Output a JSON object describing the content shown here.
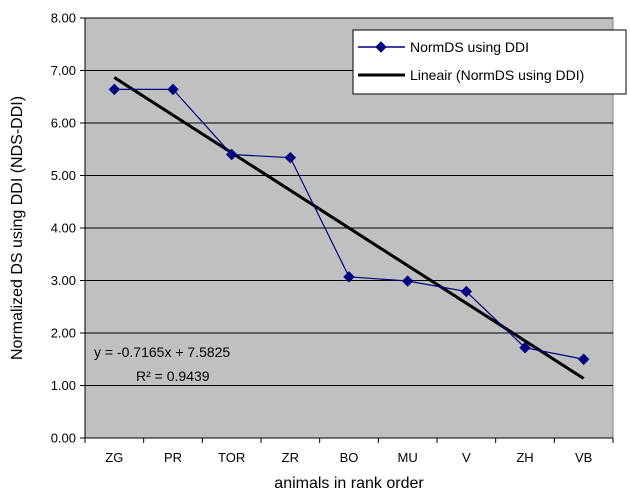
{
  "chart_data": {
    "type": "line",
    "categories": [
      "ZG",
      "PR",
      "TOR",
      "ZR",
      "BO",
      "MU",
      "V",
      "ZH",
      "VB"
    ],
    "series": [
      {
        "name": "NormDS using DDI",
        "values": [
          6.64,
          6.64,
          5.4,
          5.34,
          3.07,
          2.99,
          2.79,
          1.72,
          1.5
        ]
      }
    ],
    "trendline": {
      "name": "Lineair (NormDS using DDI)",
      "slope": -0.7165,
      "intercept": 7.5825
    },
    "xlabel": "animals in rank order",
    "ylabel": "Normalized DS using DDI (NDS-DDI)",
    "ylim": [
      0,
      8
    ],
    "yticks": [
      "0.00",
      "1.00",
      "2.00",
      "3.00",
      "4.00",
      "5.00",
      "6.00",
      "7.00",
      "8.00"
    ],
    "equation_text": "y = -0.7165x + 7.5825",
    "r2_text": "R² = 0.9439",
    "legend_position": "top-right",
    "grid": true,
    "colors": {
      "plot_background": "#c0c0c0",
      "series": "#000080",
      "trendline": "#000000",
      "gridline": "#000000"
    }
  }
}
